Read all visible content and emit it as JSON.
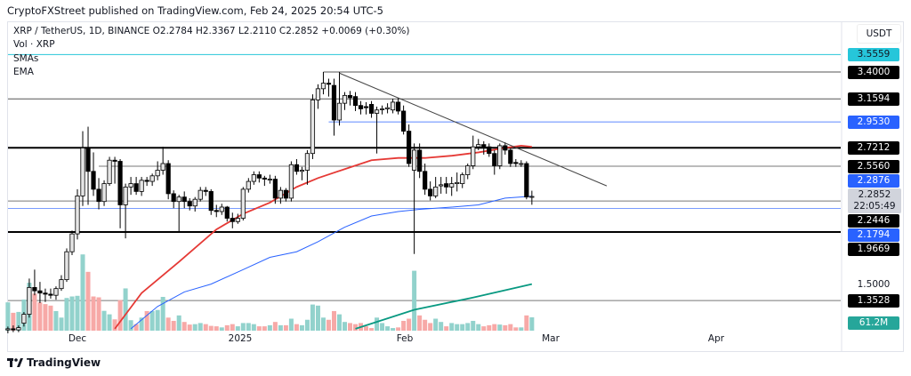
{
  "header": {
    "published": "CryptoFXStreet published on TradingView.com, Feb 24, 2025 20:54 UTC-5",
    "symbol_line": "XRP / TetherUS, 1D, BINANCE  O2.2784  H2.3367  L2.2110  C2.2852  +0.0069 (+0.30%)",
    "volume_line": "Vol · XRP",
    "indicator_1": "SMAs",
    "indicator_2": "EMA"
  },
  "axis": {
    "currency": "USDT",
    "plain_tick": "1.5000",
    "x_ticks": [
      "Dec",
      "2025",
      "Feb",
      "Mar",
      "Apr"
    ]
  },
  "current": {
    "price": "2.2852",
    "countdown": "22:05:49"
  },
  "volume_label": "61.2M",
  "footer": {
    "brand": "TradingView"
  },
  "chart_data": {
    "type": "candlestick",
    "title": "XRP / TetherUS, 1D, BINANCE",
    "ylim": [
      1.1,
      3.6
    ],
    "xlim": [
      "2024-11-18",
      "2025-04-15"
    ],
    "scale": "linear",
    "grid": false,
    "colors": {
      "bull_body": "#e6e6e6",
      "bear_body": "#000000",
      "vol_up": "#92d2cc",
      "vol_down": "#f7a9a7",
      "ema": "#e53935",
      "sma_blue": "#2962ff",
      "sma_green": "#089981"
    },
    "candles_columns": [
      "date",
      "open",
      "high",
      "low",
      "close",
      "volume_M"
    ],
    "candles": [
      [
        "2024-11-18",
        1.09,
        1.12,
        1.06,
        1.1,
        130
      ],
      [
        "2024-11-19",
        1.1,
        1.13,
        1.07,
        1.09,
        82
      ],
      [
        "2024-11-20",
        1.09,
        1.13,
        1.07,
        1.11,
        86
      ],
      [
        "2024-11-21",
        1.15,
        1.25,
        1.12,
        1.23,
        143
      ],
      [
        "2024-11-22",
        1.23,
        1.55,
        1.2,
        1.47,
        220
      ],
      [
        "2024-11-23",
        1.47,
        1.63,
        1.4,
        1.44,
        170
      ],
      [
        "2024-11-24",
        1.44,
        1.52,
        1.33,
        1.42,
        130
      ],
      [
        "2024-11-25",
        1.42,
        1.46,
        1.34,
        1.41,
        122
      ],
      [
        "2024-11-26",
        1.41,
        1.46,
        1.37,
        1.4,
        115
      ],
      [
        "2024-11-27",
        1.4,
        1.48,
        1.36,
        1.46,
        90
      ],
      [
        "2024-11-28",
        1.46,
        1.58,
        1.44,
        1.54,
        60
      ],
      [
        "2024-11-29",
        1.54,
        1.82,
        1.52,
        1.79,
        150
      ],
      [
        "2024-11-30",
        1.79,
        1.98,
        1.76,
        1.95,
        157
      ],
      [
        "2024-12-01",
        1.95,
        2.35,
        1.9,
        2.29,
        160
      ],
      [
        "2024-12-02",
        2.29,
        2.87,
        2.2,
        2.72,
        350
      ],
      [
        "2024-12-03",
        2.72,
        2.91,
        2.21,
        2.51,
        270
      ],
      [
        "2024-12-04",
        2.51,
        2.68,
        2.29,
        2.35,
        157
      ],
      [
        "2024-12-05",
        2.35,
        2.45,
        2.17,
        2.24,
        153
      ],
      [
        "2024-12-06",
        2.24,
        2.43,
        2.2,
        2.4,
        91
      ],
      [
        "2024-12-07",
        2.4,
        2.64,
        2.38,
        2.61,
        75
      ],
      [
        "2024-12-08",
        2.61,
        2.64,
        2.4,
        2.6,
        52
      ],
      [
        "2024-12-09",
        2.6,
        2.62,
        2.0,
        2.21,
        140
      ],
      [
        "2024-12-10",
        2.21,
        2.4,
        1.91,
        2.37,
        194
      ],
      [
        "2024-12-11",
        2.37,
        2.46,
        2.3,
        2.4,
        48
      ],
      [
        "2024-12-12",
        2.4,
        2.46,
        2.3,
        2.33,
        30
      ],
      [
        "2024-12-13",
        2.33,
        2.46,
        2.29,
        2.43,
        60
      ],
      [
        "2024-12-14",
        2.43,
        2.46,
        2.38,
        2.42,
        90
      ],
      [
        "2024-12-15",
        2.42,
        2.49,
        2.38,
        2.47,
        90
      ],
      [
        "2024-12-16",
        2.47,
        2.6,
        2.43,
        2.52,
        95
      ],
      [
        "2024-12-17",
        2.52,
        2.73,
        2.48,
        2.58,
        155
      ],
      [
        "2024-12-18",
        2.58,
        2.61,
        2.26,
        2.31,
        60
      ],
      [
        "2024-12-19",
        2.31,
        2.34,
        2.18,
        2.24,
        45
      ],
      [
        "2024-12-20",
        2.24,
        2.3,
        1.97,
        2.28,
        70
      ],
      [
        "2024-12-21",
        2.28,
        2.33,
        2.18,
        2.24,
        40
      ],
      [
        "2024-12-22",
        2.24,
        2.27,
        2.16,
        2.2,
        28
      ],
      [
        "2024-12-23",
        2.2,
        2.28,
        2.15,
        2.26,
        30
      ],
      [
        "2024-12-24",
        2.26,
        2.37,
        2.24,
        2.34,
        35
      ],
      [
        "2024-12-25",
        2.34,
        2.37,
        2.29,
        2.33,
        30
      ],
      [
        "2024-12-26",
        2.33,
        2.35,
        2.12,
        2.16,
        22
      ],
      [
        "2024-12-27",
        2.16,
        2.21,
        2.1,
        2.15,
        20
      ],
      [
        "2024-12-28",
        2.15,
        2.22,
        2.12,
        2.19,
        15
      ],
      [
        "2024-12-29",
        2.19,
        2.2,
        2.06,
        2.09,
        25
      ],
      [
        "2024-12-30",
        2.09,
        2.14,
        2.0,
        2.06,
        30
      ],
      [
        "2024-12-31",
        2.06,
        2.13,
        2.04,
        2.09,
        20
      ],
      [
        "2025-01-01",
        2.09,
        2.37,
        2.07,
        2.35,
        35
      ],
      [
        "2025-01-02",
        2.35,
        2.45,
        2.32,
        2.42,
        35
      ],
      [
        "2025-01-03",
        2.42,
        2.51,
        2.39,
        2.48,
        30
      ],
      [
        "2025-01-04",
        2.48,
        2.51,
        2.41,
        2.45,
        20
      ],
      [
        "2025-01-05",
        2.45,
        2.47,
        2.38,
        2.44,
        20
      ],
      [
        "2025-01-06",
        2.44,
        2.48,
        2.4,
        2.44,
        25
      ],
      [
        "2025-01-07",
        2.44,
        2.47,
        2.22,
        2.27,
        40
      ],
      [
        "2025-01-08",
        2.27,
        2.37,
        2.22,
        2.34,
        25
      ],
      [
        "2025-01-09",
        2.34,
        2.36,
        2.24,
        2.27,
        25
      ],
      [
        "2025-01-10",
        2.27,
        2.6,
        2.24,
        2.57,
        55
      ],
      [
        "2025-01-11",
        2.57,
        2.62,
        2.48,
        2.51,
        30
      ],
      [
        "2025-01-12",
        2.51,
        2.55,
        2.43,
        2.52,
        25
      ],
      [
        "2025-01-13",
        2.52,
        2.7,
        2.39,
        2.67,
        50
      ],
      [
        "2025-01-14",
        2.67,
        3.2,
        2.62,
        3.15,
        120
      ],
      [
        "2025-01-15",
        3.15,
        3.29,
        3.07,
        3.25,
        115
      ],
      [
        "2025-01-16",
        3.25,
        3.4,
        3.2,
        3.3,
        60
      ],
      [
        "2025-01-17",
        3.3,
        3.34,
        3.18,
        3.29,
        50
      ],
      [
        "2025-01-18",
        3.28,
        3.34,
        2.83,
        2.97,
        90
      ],
      [
        "2025-01-19",
        2.97,
        3.4,
        2.92,
        3.12,
        75
      ],
      [
        "2025-01-20",
        3.12,
        3.22,
        3.06,
        3.19,
        40
      ],
      [
        "2025-01-21",
        3.19,
        3.23,
        3.1,
        3.17,
        35
      ],
      [
        "2025-01-22",
        3.18,
        3.22,
        3.05,
        3.1,
        30
      ],
      [
        "2025-01-23",
        3.1,
        3.14,
        3.02,
        3.07,
        35
      ],
      [
        "2025-01-24",
        3.09,
        3.13,
        3.02,
        3.08,
        20
      ],
      [
        "2025-01-25",
        3.11,
        3.14,
        2.99,
        3.03,
        12
      ],
      [
        "2025-01-26",
        3.03,
        3.09,
        2.67,
        3.06,
        60
      ],
      [
        "2025-01-27",
        3.07,
        3.1,
        3.02,
        3.07,
        35
      ],
      [
        "2025-01-28",
        3.07,
        3.12,
        3.03,
        3.08,
        20
      ],
      [
        "2025-01-29",
        3.06,
        3.16,
        3.03,
        3.13,
        12
      ],
      [
        "2025-01-30",
        3.13,
        3.17,
        3.02,
        3.05,
        15
      ],
      [
        "2025-01-31",
        3.05,
        3.1,
        2.84,
        2.87,
        45
      ],
      [
        "2025-02-01",
        2.87,
        2.93,
        2.55,
        2.58,
        55
      ],
      [
        "2025-02-02",
        2.52,
        2.76,
        1.77,
        2.7,
        275
      ],
      [
        "2025-02-03",
        2.7,
        2.76,
        2.45,
        2.51,
        70
      ],
      [
        "2025-02-04",
        2.51,
        2.58,
        2.3,
        2.35,
        50
      ],
      [
        "2025-02-05",
        2.35,
        2.42,
        2.25,
        2.29,
        35
      ],
      [
        "2025-02-06",
        2.29,
        2.46,
        2.27,
        2.37,
        55
      ],
      [
        "2025-02-07",
        2.38,
        2.46,
        2.31,
        2.39,
        40
      ],
      [
        "2025-02-08",
        2.4,
        2.46,
        2.31,
        2.37,
        20
      ],
      [
        "2025-02-09",
        2.37,
        2.46,
        2.29,
        2.4,
        35
      ],
      [
        "2025-02-10",
        2.4,
        2.5,
        2.33,
        2.41,
        30
      ],
      [
        "2025-02-11",
        2.4,
        2.5,
        2.36,
        2.48,
        30
      ],
      [
        "2025-02-12",
        2.48,
        2.58,
        2.44,
        2.56,
        35
      ],
      [
        "2025-02-13",
        2.56,
        2.83,
        2.53,
        2.73,
        45
      ],
      [
        "2025-02-14",
        2.73,
        2.8,
        2.7,
        2.75,
        30
      ],
      [
        "2025-02-15",
        2.75,
        2.78,
        2.66,
        2.72,
        20
      ],
      [
        "2025-02-16",
        2.73,
        2.76,
        2.64,
        2.67,
        25
      ],
      [
        "2025-02-17",
        2.67,
        2.7,
        2.48,
        2.56,
        30
      ],
      [
        "2025-02-18",
        2.56,
        2.76,
        2.53,
        2.74,
        28
      ],
      [
        "2025-02-19",
        2.74,
        2.77,
        2.66,
        2.7,
        25
      ],
      [
        "2025-02-20",
        2.7,
        2.72,
        2.55,
        2.58,
        30
      ],
      [
        "2025-02-21",
        2.59,
        2.62,
        2.55,
        2.58,
        15
      ],
      [
        "2025-02-22",
        2.58,
        2.61,
        2.55,
        2.58,
        15
      ],
      [
        "2025-02-23",
        2.58,
        2.6,
        2.26,
        2.28,
        70
      ],
      [
        "2025-02-24",
        2.2784,
        2.3367,
        2.211,
        2.2852,
        61.2
      ]
    ],
    "moving_averages": [
      {
        "color": "#e53935",
        "points": [
          [
            "2024-12-08",
            1.1
          ],
          [
            "2024-12-13",
            1.42
          ],
          [
            "2024-12-20",
            1.7
          ],
          [
            "2024-12-27",
            1.99
          ],
          [
            "2025-01-01",
            2.13
          ],
          [
            "2025-01-06",
            2.23
          ],
          [
            "2025-01-11",
            2.37
          ],
          [
            "2025-01-15",
            2.45
          ],
          [
            "2025-01-20",
            2.53
          ],
          [
            "2025-01-25",
            2.61
          ],
          [
            "2025-01-30",
            2.63
          ],
          [
            "2025-02-04",
            2.63
          ],
          [
            "2025-02-09",
            2.65
          ],
          [
            "2025-02-14",
            2.68
          ],
          [
            "2025-02-19",
            2.72
          ],
          [
            "2025-02-22",
            2.74
          ],
          [
            "2025-02-24",
            2.73
          ]
        ]
      },
      {
        "color": "#2962ff",
        "points": [
          [
            "2024-12-11",
            1.1
          ],
          [
            "2024-12-16",
            1.3
          ],
          [
            "2024-12-21",
            1.43
          ],
          [
            "2024-12-26",
            1.5
          ],
          [
            "2025-01-01",
            1.63
          ],
          [
            "2025-01-06",
            1.74
          ],
          [
            "2025-01-11",
            1.79
          ],
          [
            "2025-01-15",
            1.88
          ],
          [
            "2025-01-20",
            2.01
          ],
          [
            "2025-01-25",
            2.11
          ],
          [
            "2025-01-30",
            2.15
          ],
          [
            "2025-02-03",
            2.17
          ],
          [
            "2025-02-09",
            2.19
          ],
          [
            "2025-02-14",
            2.21
          ],
          [
            "2025-02-19",
            2.27
          ],
          [
            "2025-02-24",
            2.2876
          ]
        ]
      },
      {
        "color": "#089981",
        "points": [
          [
            "2025-01-22",
            1.1
          ],
          [
            "2025-02-02",
            1.27
          ],
          [
            "2025-02-13",
            1.38
          ],
          [
            "2025-02-24",
            1.5
          ]
        ]
      }
    ],
    "levels": [
      {
        "price": 3.5559,
        "label": "3.5559",
        "line": "#26c6da",
        "bg": "#26c6da",
        "fg": "#131722",
        "from": null,
        "width": 1
      },
      {
        "price": 3.4,
        "label": "3.4000",
        "line": "#555555",
        "bg": "#000000",
        "fg": "#ffffff",
        "from": "2025-01-16",
        "width": 1
      },
      {
        "price": 3.1594,
        "label": "3.1594",
        "line": "#555555",
        "bg": "#000000",
        "fg": "#ffffff",
        "from": null,
        "width": 1
      },
      {
        "price": 2.953,
        "label": "2.9530",
        "line": "#2962ff",
        "bg": "#2962ff",
        "fg": "#ffffff",
        "from": "2025-01-17",
        "width": 0.8
      },
      {
        "price": 2.7212,
        "label": "2.7212",
        "line": "#000000",
        "bg": "#000000",
        "fg": "#ffffff",
        "from": null,
        "width": 2
      },
      {
        "price": 2.556,
        "label": "2.5560",
        "line": "#777777",
        "bg": "#000000",
        "fg": "#ffffff",
        "from": "2024-12-05",
        "width": 1
      },
      {
        "price": 2.2876,
        "label": "2.2876",
        "line": null,
        "bg": "#2962ff",
        "fg": "#ffffff",
        "from": null,
        "width": 0
      },
      {
        "price": 2.2446,
        "label": "2.2446",
        "line": "#777777",
        "bg": "#000000",
        "fg": "#ffffff",
        "from": null,
        "width": 1
      },
      {
        "price": 2.1794,
        "label": "2.1794",
        "line": "#2962ff",
        "bg": "#2962ff",
        "fg": "#ffffff",
        "from": null,
        "width": 0.6
      },
      {
        "price": 1.9669,
        "label": "1.9669",
        "line": "#000000",
        "bg": "#000000",
        "fg": "#ffffff",
        "from": null,
        "width": 2
      },
      {
        "price": 1.3528,
        "label": "1.3528",
        "line": "#777777",
        "bg": "#000000",
        "fg": "#ffffff",
        "from": null,
        "width": 1
      }
    ],
    "trendline": {
      "from": [
        "2025-01-19",
        3.39
      ],
      "to": [
        "2025-03-10",
        2.38
      ],
      "color": "#444444"
    }
  }
}
